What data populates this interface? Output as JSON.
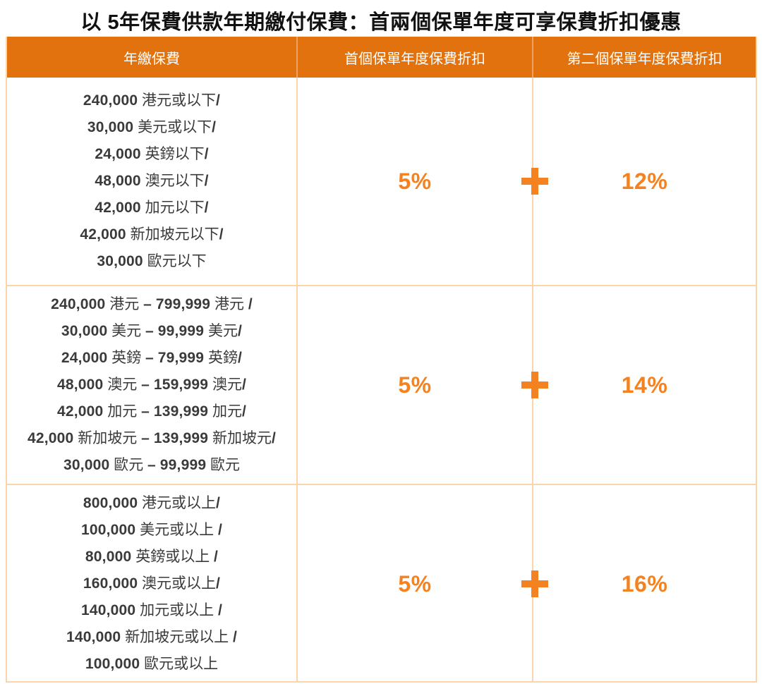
{
  "title": "以 5年保費供款年期繳付保費：首兩個保單年度可享保費折扣優惠",
  "colors": {
    "header_bg": "#E2720E",
    "accent_orange": "#F58220",
    "grid_line": "#FAD5AC",
    "body_text": "#3A3A3A",
    "header_text": "#FFFFFF",
    "title_text": "#111111"
  },
  "icons": {
    "plus_icon": "+"
  },
  "table": {
    "headers": [
      "年繳保費",
      "首個保單年度保費折扣",
      "第二個保單年度保費折扣"
    ],
    "rows": [
      {
        "premium_lines": [
          "240,000 港元或以下/",
          "30,000 美元或以下/",
          "24,000 英鎊以下/",
          "48,000 澳元以下/",
          "42,000 加元以下/",
          "42,000 新加坡元以下/",
          "30,000 歐元以下"
        ],
        "first_year_discount": "5%",
        "plus": "+",
        "second_year_discount": "12%"
      },
      {
        "premium_lines": [
          "240,000 港元 – 799,999 港元 /",
          "30,000 美元 – 99,999 美元/",
          "24,000 英鎊 – 79,999 英鎊/",
          "48,000 澳元 – 159,999 澳元/",
          "42,000 加元 – 139,999 加元/",
          "42,000 新加坡元 – 139,999 新加坡元/",
          "30,000 歐元 – 99,999 歐元"
        ],
        "first_year_discount": "5%",
        "plus": "+",
        "second_year_discount": "14%"
      },
      {
        "premium_lines": [
          "800,000 港元或以上/",
          "100,000 美元或以上 /",
          "80,000 英鎊或以上 /",
          "160,000 澳元或以上/",
          "140,000 加元或以上 /",
          "140,000 新加坡元或以上 /",
          "100,000 歐元或以上"
        ],
        "first_year_discount": "5%",
        "plus": "+",
        "second_year_discount": "16%"
      }
    ]
  }
}
